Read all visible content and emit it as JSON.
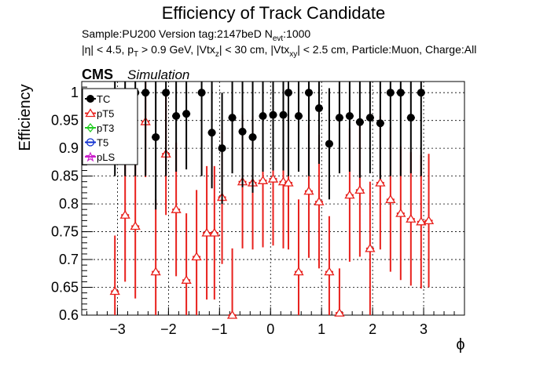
{
  "chart_data": {
    "type": "scatter",
    "title": "Efficiency of Track Candidate",
    "info_line1": "Sample:PU200   Version tag:2147beD  N",
    "info_line1_sub": "evt",
    "info_line1_tail": ":1000",
    "info_line2": "|η| < 4.5, p",
    "info_line2_sub1": "T",
    "info_line2_mid1": " > 0.9 GeV, |Vtx",
    "info_line2_sub2": "z",
    "info_line2_mid2": "| < 30 cm, |Vtx",
    "info_line2_sub3": "xy",
    "info_line2_tail": "| < 2.5 cm, Particle:Muon, Charge:All",
    "cms_label": "CMS",
    "sim_label": "Simulation",
    "xlabel": "ϕ",
    "ylabel": "Efficiency",
    "xlim": [
      -3.7,
      3.8
    ],
    "ylim": [
      0.6,
      1.02
    ],
    "xticks": [
      -3,
      -2,
      -1,
      0,
      1,
      2,
      3
    ],
    "xtick_labels": [
      "−3",
      "−2",
      "−1",
      "0",
      "1",
      "2",
      "3"
    ],
    "yticks": [
      0.6,
      0.65,
      0.7,
      0.75,
      0.8,
      0.85,
      0.9,
      0.95,
      1.0
    ],
    "ytick_labels": [
      "0.6",
      "0.65",
      "0.7",
      "0.75",
      "0.8",
      "0.85",
      "0.9",
      "0.95",
      "1"
    ],
    "grid": true,
    "legend_position": "top-left",
    "colors": {
      "TC": "#000000",
      "pT5": "#e8201c",
      "pT3": "#22cc22",
      "T5": "#1030d0",
      "pLS": "#cc22cc"
    },
    "series": [
      {
        "name": "TC",
        "marker": "circle-filled",
        "x": [
          -3.05,
          -2.85,
          -2.65,
          -2.45,
          -2.25,
          -2.05,
          -1.85,
          -1.65,
          -1.35,
          -1.15,
          -0.95,
          -0.75,
          -0.55,
          -0.35,
          -0.15,
          0.05,
          0.25,
          0.35,
          0.55,
          0.75,
          0.95,
          1.15,
          1.35,
          1.55,
          1.75,
          1.95,
          2.15,
          2.35,
          2.55,
          2.75,
          2.95
        ],
        "y": [
          1.0,
          1.0,
          1.0,
          1.0,
          0.92,
          1.0,
          0.958,
          0.962,
          1.0,
          0.928,
          0.9,
          0.955,
          0.93,
          0.92,
          0.958,
          0.96,
          0.96,
          1.0,
          0.958,
          1.0,
          0.972,
          0.908,
          0.955,
          0.958,
          0.947,
          0.955,
          0.945,
          1.0,
          1.0,
          0.955,
          1.0
        ],
        "err": [
          0.15,
          0.15,
          0.15,
          0.15,
          0.13,
          0.15,
          0.1,
          0.1,
          0.15,
          0.1,
          0.1,
          0.1,
          0.1,
          0.1,
          0.1,
          0.1,
          0.1,
          0.15,
          0.1,
          0.15,
          0.1,
          0.1,
          0.1,
          0.1,
          0.1,
          0.1,
          0.1,
          0.15,
          0.15,
          0.1,
          0.15
        ]
      },
      {
        "name": "pT5",
        "marker": "triangle-open",
        "x": [
          -3.05,
          -2.85,
          -2.65,
          -2.45,
          -2.25,
          -2.05,
          -1.85,
          -1.65,
          -1.45,
          -1.25,
          -1.1,
          -0.95,
          -0.75,
          -0.55,
          -0.35,
          -0.15,
          0.05,
          0.25,
          0.35,
          0.55,
          0.75,
          0.95,
          1.15,
          1.35,
          1.55,
          1.75,
          1.95,
          2.15,
          2.35,
          2.55,
          2.75,
          2.95,
          3.1
        ],
        "y": [
          0.643,
          0.78,
          0.76,
          0.948,
          0.678,
          0.89,
          0.79,
          0.663,
          0.705,
          0.748,
          0.748,
          0.812,
          0.6,
          0.84,
          0.838,
          0.842,
          0.845,
          0.84,
          0.838,
          0.678,
          0.823,
          0.804,
          0.678,
          0.604,
          0.816,
          0.825,
          0.72,
          0.838,
          0.808,
          0.783,
          0.773,
          0.768,
          0.77
        ],
        "err": [
          0.1,
          0.12,
          0.13,
          0.1,
          0.13,
          0.11,
          0.12,
          0.12,
          0.12,
          0.12,
          0.12,
          0.12,
          0.12,
          0.12,
          0.12,
          0.12,
          0.12,
          0.12,
          0.12,
          0.13,
          0.12,
          0.12,
          0.1,
          0.08,
          0.12,
          0.12,
          0.12,
          0.12,
          0.13,
          0.12,
          0.12,
          0.12,
          0.12
        ]
      },
      {
        "name": "pT3",
        "marker": "diamond-open",
        "x": [],
        "y": []
      },
      {
        "name": "T5",
        "marker": "circle-open",
        "x": [],
        "y": []
      },
      {
        "name": "pLS",
        "marker": "star-open",
        "x": [],
        "y": []
      }
    ]
  }
}
